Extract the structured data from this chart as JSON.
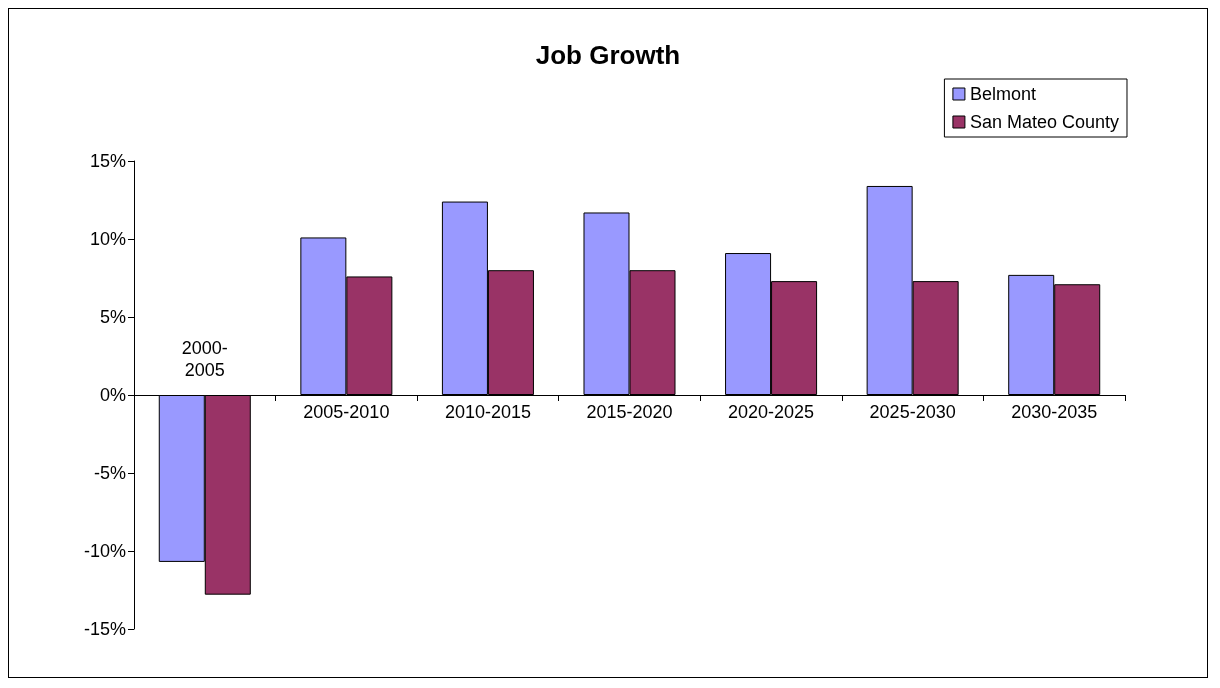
{
  "chart_data": {
    "type": "bar",
    "title": "Job Growth",
    "categories": [
      "2000-2005",
      "2005-2010",
      "2010-2015",
      "2015-2020",
      "2020-2025",
      "2025-2030",
      "2030-2035"
    ],
    "series": [
      {
        "name": "Belmont",
        "color": "#9999ff",
        "values": [
          -10.7,
          10.1,
          12.4,
          11.7,
          9.1,
          13.4,
          7.7
        ]
      },
      {
        "name": "San Mateo County",
        "color": "#993366",
        "values": [
          -12.8,
          7.6,
          8.0,
          8.0,
          7.3,
          7.3,
          7.1
        ]
      }
    ],
    "ylim": [
      -15,
      15
    ],
    "yticks": [
      {
        "value": -15,
        "label": "-15%"
      },
      {
        "value": -10,
        "label": "-10%"
      },
      {
        "value": -5,
        "label": "-5%"
      },
      {
        "value": 0,
        "label": "0%"
      },
      {
        "value": 5,
        "label": "5%"
      },
      {
        "value": 10,
        "label": "10%"
      },
      {
        "value": 15,
        "label": "15%"
      }
    ],
    "grid": false,
    "legend": "top right"
  }
}
